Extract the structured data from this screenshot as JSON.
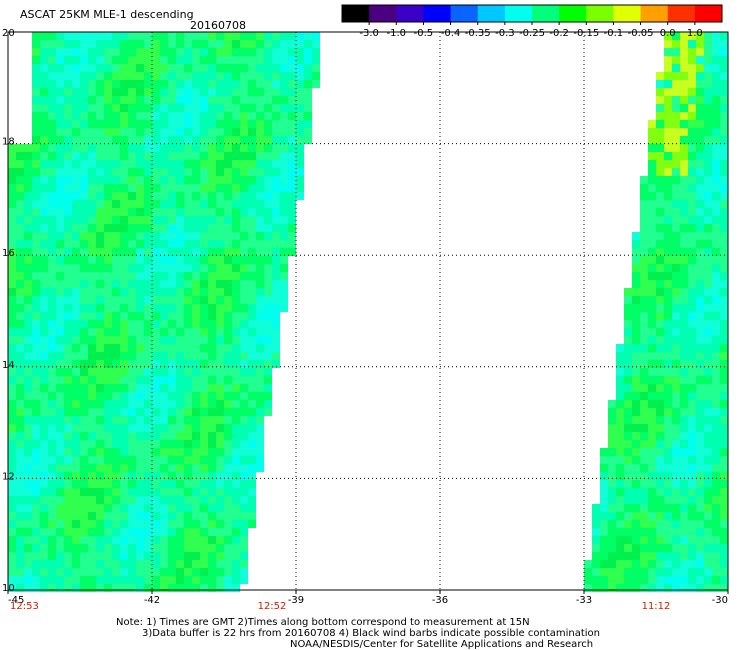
{
  "header": {
    "title": "ASCAT 25KM MLE-1 descending",
    "date": "20160708"
  },
  "colorbar": {
    "labels": [
      "-3.0",
      "-1.0",
      "-0.5",
      "-0.4",
      "-0.35",
      "-0.3",
      "-0.25",
      "-0.2",
      "-0.15",
      "-0.1",
      "-0.05",
      "0.0",
      "1.0"
    ],
    "colors": [
      "#000000",
      "#4b0082",
      "#3a00c8",
      "#0000ff",
      "#0a64ff",
      "#00c8ff",
      "#00ffee",
      "#00ff7a",
      "#00ff00",
      "#7bff00",
      "#e0ff00",
      "#ffa000",
      "#ff3000",
      "#ff0000"
    ]
  },
  "axes": {
    "lon_ticks": [
      "-45",
      "-42",
      "-39",
      "-36",
      "-33",
      "-30"
    ],
    "lon_values": [
      -45,
      -42,
      -39,
      -36,
      -33,
      -30
    ],
    "lat_ticks": [
      "20",
      "18",
      "16",
      "14",
      "12",
      "10"
    ],
    "lat_values": [
      20,
      18,
      16,
      14,
      12,
      10
    ],
    "lon_range": [
      -45,
      -30
    ],
    "lat_range": [
      10,
      20
    ]
  },
  "times": [
    {
      "label": "12:53",
      "lon": -45
    },
    {
      "label": "12:52",
      "lon": -39.5
    },
    {
      "label": "11:12",
      "lon": -31.5
    }
  ],
  "swaths": {
    "west": {
      "lon_west": -44.5,
      "lon_east_at_lat20": -38.5,
      "lon_east_at_lat10": -40.2
    },
    "east": {
      "lon_west_at_lat20": -31.4,
      "lon_west_at_lat10": -33.1,
      "lon_east": -30
    }
  },
  "footer": {
    "line1": "Note: 1) Times are GMT 2)Times along bottom correspond to measurement at 15N",
    "line2": "3)Data buffer is 22 hrs from 20160708 4) Black wind barbs indicate possible contamination",
    "line3": "NOAA/NESDIS/Center for Satellite Applications and Research"
  }
}
